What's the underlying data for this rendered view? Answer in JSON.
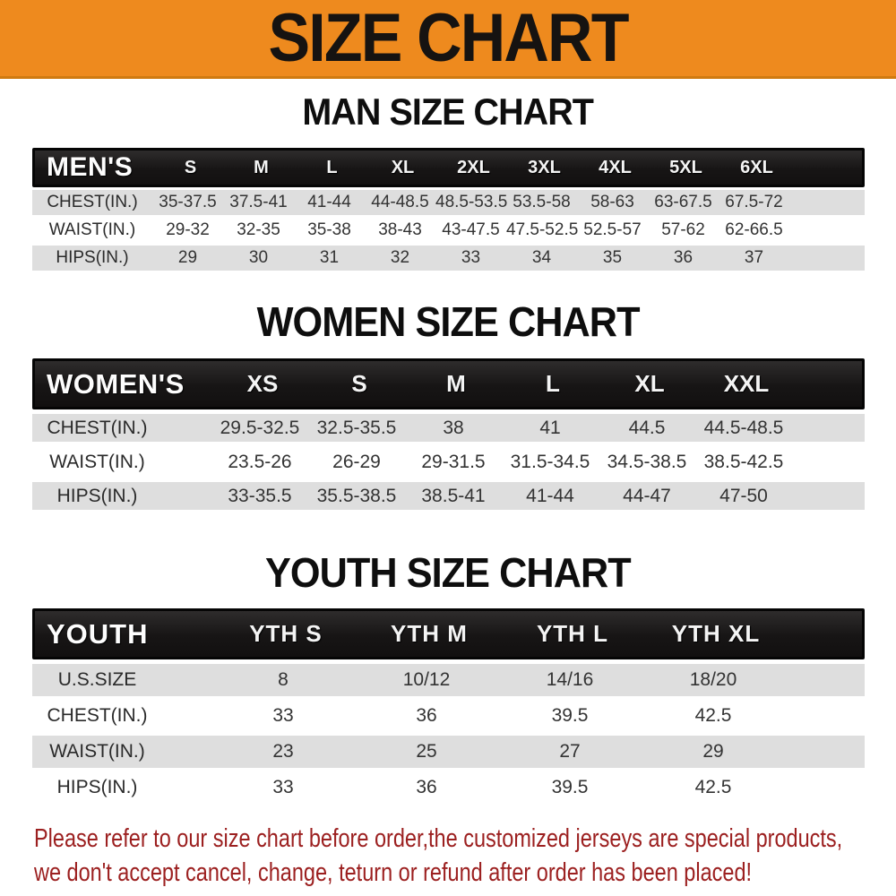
{
  "banner": {
    "title": "SIZE CHART",
    "bg_color": "#ee8a1e"
  },
  "colors": {
    "header_bar": "#1a1a1a",
    "row_gray": "#dedede",
    "note_text": "#9c2020"
  },
  "sections": {
    "men": {
      "title": "MAN SIZE CHART",
      "header": {
        "label": "MEN'S",
        "sizes": [
          "S",
          "M",
          "L",
          "XL",
          "2XL",
          "3XL",
          "4XL",
          "5XL",
          "6XL"
        ]
      },
      "rows": [
        {
          "label": "CHEST(IN.)",
          "values": [
            "35-37.5",
            "37.5-41",
            "41-44",
            "44-48.5",
            "48.5-53.5",
            "53.5-58",
            "58-63",
            "63-67.5",
            "67.5-72"
          ]
        },
        {
          "label": "WAIST(IN.)",
          "values": [
            "29-32",
            "32-35",
            "35-38",
            "38-43",
            "43-47.5",
            "47.5-52.5",
            "52.5-57",
            "57-62",
            "62-66.5"
          ]
        },
        {
          "label": "HIPS(IN.)",
          "values": [
            "29",
            "30",
            "31",
            "32",
            "33",
            "34",
            "35",
            "36",
            "37"
          ]
        }
      ]
    },
    "women": {
      "title": "WOMEN SIZE CHART",
      "header": {
        "label": "WOMEN'S",
        "sizes": [
          "XS",
          "S",
          "M",
          "L",
          "XL",
          "XXL"
        ]
      },
      "rows": [
        {
          "label": "CHEST(IN.)",
          "values": [
            "29.5-32.5",
            "32.5-35.5",
            "38",
            "41",
            "44.5",
            "44.5-48.5"
          ]
        },
        {
          "label": "WAIST(IN.)",
          "values": [
            "23.5-26",
            "26-29",
            "29-31.5",
            "31.5-34.5",
            "34.5-38.5",
            "38.5-42.5"
          ]
        },
        {
          "label": "HIPS(IN.)",
          "values": [
            "33-35.5",
            "35.5-38.5",
            "38.5-41",
            "41-44",
            "44-47",
            "47-50"
          ]
        }
      ]
    },
    "youth": {
      "title": "YOUTH SIZE CHART",
      "header": {
        "label": "YOUTH",
        "sizes": [
          "YTH S",
          "YTH M",
          "YTH L",
          "YTH XL"
        ]
      },
      "rows": [
        {
          "label": "U.S.SIZE",
          "values": [
            "8",
            "10/12",
            "14/16",
            "18/20"
          ]
        },
        {
          "label": "CHEST(IN.)",
          "values": [
            "33",
            "36",
            "39.5",
            "42.5"
          ]
        },
        {
          "label": "WAIST(IN.)",
          "values": [
            "23",
            "25",
            "27",
            "29"
          ]
        },
        {
          "label": "HIPS(IN.)",
          "values": [
            "33",
            "36",
            "39.5",
            "42.5"
          ]
        }
      ]
    }
  },
  "footer_note": {
    "line1": "Please refer to our size chart before order,the customized jerseys are special products,",
    "line2": "we don't accept cancel, change, teturn or refund after order has been placed!"
  }
}
